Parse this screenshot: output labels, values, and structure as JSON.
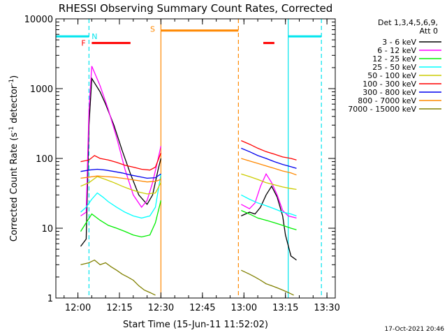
{
  "chart_data": {
    "type": "line",
    "title": "RHESSI Observing Summary Count Rates, Corrected",
    "xlabel": "Start Time (15-Jun-11 11:52:02)",
    "ylabel_main": "Corrected Count Rate (s",
    "ylabel_sup1": "-1",
    "ylabel_mid": " detector",
    "ylabel_sup2": "-1",
    "ylabel_end": ")",
    "y_scale": "log",
    "ylim": [
      1,
      10000
    ],
    "xlim": [
      "11:52:02",
      "13:33:00"
    ],
    "x_ticks": [
      "12:00",
      "12:15",
      "12:30",
      "12:45",
      "13:00",
      "13:15",
      "13:30"
    ],
    "y_ticks": [
      "1",
      "10",
      "100",
      "1000",
      "10000"
    ],
    "legend_header": [
      "Det 1,3,4,5,6,9,",
      "Att 0"
    ],
    "legend_placement": "right",
    "timestamp": "17-Oct-2021 20:46",
    "series": [
      {
        "name": "3 - 6 keV",
        "color": "#000000",
        "points": [
          [
            "12:01",
            5.5
          ],
          [
            "12:03",
            7
          ],
          [
            "12:04",
            300
          ],
          [
            "12:05",
            1400
          ],
          [
            "12:08",
            900
          ],
          [
            "12:10",
            600
          ],
          [
            "12:13",
            300
          ],
          [
            "12:16",
            130
          ],
          [
            "12:19",
            60
          ],
          [
            "12:22",
            30
          ],
          [
            "12:25",
            22
          ],
          [
            "12:27",
            30
          ],
          [
            "12:29",
            70
          ],
          [
            "12:30",
            100
          ]
        ]
      },
      {
        "name": "3 - 6 keV",
        "color": "#000000",
        "points": [
          [
            "12:59",
            15
          ],
          [
            "13:02",
            17
          ],
          [
            "13:04",
            16
          ],
          [
            "13:06",
            20
          ],
          [
            "13:08",
            30
          ],
          [
            "13:10",
            40
          ],
          [
            "13:12",
            28
          ],
          [
            "13:14",
            15
          ],
          [
            "13:15",
            8
          ],
          [
            "13:17",
            4
          ],
          [
            "13:19",
            3.5
          ]
        ]
      },
      {
        "name": "6 - 12 keV",
        "color": "#ff00ff",
        "points": [
          [
            "12:01",
            15
          ],
          [
            "12:03",
            17
          ],
          [
            "12:04",
            500
          ],
          [
            "12:05",
            2100
          ],
          [
            "12:08",
            1100
          ],
          [
            "12:11",
            500
          ],
          [
            "12:14",
            200
          ],
          [
            "12:17",
            70
          ],
          [
            "12:20",
            30
          ],
          [
            "12:23",
            20
          ],
          [
            "12:25",
            25
          ],
          [
            "12:27",
            45
          ],
          [
            "12:29",
            100
          ],
          [
            "12:30",
            150
          ]
        ]
      },
      {
        "name": "6 - 12 keV",
        "color": "#ff00ff",
        "points": [
          [
            "12:59",
            22
          ],
          [
            "13:02",
            19
          ],
          [
            "13:04",
            23
          ],
          [
            "13:06",
            40
          ],
          [
            "13:08",
            60
          ],
          [
            "13:10",
            45
          ],
          [
            "13:12",
            30
          ],
          [
            "13:14",
            18
          ],
          [
            "13:16",
            15
          ],
          [
            "13:19",
            14
          ]
        ]
      },
      {
        "name": "12 - 25 keV",
        "color": "#00ee00",
        "points": [
          [
            "12:01",
            9
          ],
          [
            "12:03",
            12
          ],
          [
            "12:05",
            16
          ],
          [
            "12:08",
            13
          ],
          [
            "12:11",
            11
          ],
          [
            "12:14",
            10
          ],
          [
            "12:17",
            9
          ],
          [
            "12:20",
            8
          ],
          [
            "12:23",
            7.5
          ],
          [
            "12:26",
            8
          ],
          [
            "12:28",
            12
          ],
          [
            "12:30",
            25
          ]
        ]
      },
      {
        "name": "12 - 25 keV",
        "color": "#00ee00",
        "points": [
          [
            "12:59",
            18
          ],
          [
            "13:02",
            16
          ],
          [
            "13:05",
            14
          ],
          [
            "13:08",
            13
          ],
          [
            "13:11",
            12
          ],
          [
            "13:14",
            11
          ],
          [
            "13:17",
            10
          ],
          [
            "13:19",
            9.5
          ]
        ]
      },
      {
        "name": "25 - 50 keV",
        "color": "#00ffff",
        "points": [
          [
            "12:01",
            17
          ],
          [
            "12:03",
            20
          ],
          [
            "12:05",
            26
          ],
          [
            "12:07",
            32
          ],
          [
            "12:09",
            28
          ],
          [
            "12:11",
            24
          ],
          [
            "12:14",
            20
          ],
          [
            "12:17",
            17
          ],
          [
            "12:20",
            15
          ],
          [
            "12:23",
            14
          ],
          [
            "12:26",
            15
          ],
          [
            "12:28",
            20
          ],
          [
            "12:30",
            60
          ]
        ]
      },
      {
        "name": "25 - 50 keV",
        "color": "#00ffff",
        "points": [
          [
            "12:59",
            30
          ],
          [
            "13:02",
            26
          ],
          [
            "13:05",
            23
          ],
          [
            "13:08",
            21
          ],
          [
            "13:11",
            19
          ],
          [
            "13:14",
            17
          ],
          [
            "13:17",
            16
          ],
          [
            "13:19",
            15
          ]
        ]
      },
      {
        "name": "50 - 100 keV",
        "color": "#cccc00",
        "points": [
          [
            "12:01",
            40
          ],
          [
            "12:04",
            45
          ],
          [
            "12:07",
            55
          ],
          [
            "12:10",
            50
          ],
          [
            "12:13",
            45
          ],
          [
            "12:16",
            40
          ],
          [
            "12:19",
            36
          ],
          [
            "12:22",
            33
          ],
          [
            "12:25",
            31
          ],
          [
            "12:28",
            32
          ],
          [
            "12:30",
            45
          ]
        ]
      },
      {
        "name": "50 - 100 keV",
        "color": "#cccc00",
        "points": [
          [
            "12:59",
            60
          ],
          [
            "13:02",
            55
          ],
          [
            "13:05",
            50
          ],
          [
            "13:08",
            45
          ],
          [
            "13:11",
            42
          ],
          [
            "13:14",
            39
          ],
          [
            "13:17",
            37
          ],
          [
            "13:19",
            36
          ]
        ]
      },
      {
        "name": "100 - 300 keV",
        "color": "#ff0000",
        "points": [
          [
            "12:01",
            90
          ],
          [
            "12:04",
            95
          ],
          [
            "12:06",
            110
          ],
          [
            "12:08",
            100
          ],
          [
            "12:11",
            95
          ],
          [
            "12:14",
            88
          ],
          [
            "12:17",
            80
          ],
          [
            "12:20",
            75
          ],
          [
            "12:23",
            70
          ],
          [
            "12:26",
            68
          ],
          [
            "12:28",
            75
          ],
          [
            "12:30",
            120
          ]
        ]
      },
      {
        "name": "100 - 300 keV",
        "color": "#ff0000",
        "points": [
          [
            "12:59",
            180
          ],
          [
            "13:02",
            160
          ],
          [
            "13:05",
            140
          ],
          [
            "13:08",
            125
          ],
          [
            "13:11",
            115
          ],
          [
            "13:14",
            105
          ],
          [
            "13:17",
            100
          ],
          [
            "13:19",
            95
          ]
        ]
      },
      {
        "name": "300 - 800 keV",
        "color": "#0000ee",
        "points": [
          [
            "12:01",
            65
          ],
          [
            "12:04",
            68
          ],
          [
            "12:07",
            70
          ],
          [
            "12:10",
            68
          ],
          [
            "12:13",
            65
          ],
          [
            "12:16",
            62
          ],
          [
            "12:19",
            58
          ],
          [
            "12:22",
            55
          ],
          [
            "12:25",
            52
          ],
          [
            "12:28",
            53
          ],
          [
            "12:30",
            60
          ]
        ]
      },
      {
        "name": "300 - 800 keV",
        "color": "#0000ee",
        "points": [
          [
            "12:59",
            140
          ],
          [
            "13:02",
            125
          ],
          [
            "13:05",
            110
          ],
          [
            "13:08",
            100
          ],
          [
            "13:11",
            90
          ],
          [
            "13:14",
            82
          ],
          [
            "13:17",
            76
          ],
          [
            "13:19",
            72
          ]
        ]
      },
      {
        "name": "800 - 7000 keV",
        "color": "#ff8800",
        "points": [
          [
            "12:01",
            52
          ],
          [
            "12:04",
            54
          ],
          [
            "12:07",
            56
          ],
          [
            "12:10",
            55
          ],
          [
            "12:13",
            54
          ],
          [
            "12:16",
            52
          ],
          [
            "12:19",
            50
          ],
          [
            "12:22",
            48
          ],
          [
            "12:25",
            46
          ],
          [
            "12:28",
            47
          ],
          [
            "12:30",
            50
          ]
        ]
      },
      {
        "name": "800 - 7000 keV",
        "color": "#ff8800",
        "points": [
          [
            "12:59",
            100
          ],
          [
            "13:02",
            92
          ],
          [
            "13:05",
            85
          ],
          [
            "13:08",
            78
          ],
          [
            "13:11",
            72
          ],
          [
            "13:14",
            66
          ],
          [
            "13:17",
            62
          ],
          [
            "13:19",
            58
          ]
        ]
      },
      {
        "name": "7000 - 15000 keV",
        "color": "#808000",
        "points": [
          [
            "12:01",
            3
          ],
          [
            "12:04",
            3.2
          ],
          [
            "12:06",
            3.5
          ],
          [
            "12:08",
            3
          ],
          [
            "12:10",
            3.2
          ],
          [
            "12:12",
            2.8
          ],
          [
            "12:14",
            2.5
          ],
          [
            "12:16",
            2.2
          ],
          [
            "12:18",
            2
          ],
          [
            "12:20",
            1.8
          ],
          [
            "12:22",
            1.5
          ],
          [
            "12:24",
            1.3
          ],
          [
            "12:26",
            1.2
          ],
          [
            "12:28",
            1.1
          ]
        ]
      },
      {
        "name": "7000 - 15000 keV",
        "color": "#808000",
        "points": [
          [
            "12:59",
            2.5
          ],
          [
            "13:02",
            2.2
          ],
          [
            "13:04",
            2
          ],
          [
            "13:06",
            1.8
          ],
          [
            "13:08",
            1.6
          ],
          [
            "13:10",
            1.5
          ],
          [
            "13:12",
            1.4
          ],
          [
            "13:14",
            1.3
          ],
          [
            "13:16",
            1.2
          ],
          [
            "13:18",
            1.1
          ]
        ]
      }
    ],
    "legend": [
      {
        "name": "3 - 6 keV",
        "color": "#000000"
      },
      {
        "name": "6 - 12 keV",
        "color": "#ff00ff"
      },
      {
        "name": "12 - 25 keV",
        "color": "#00ee00"
      },
      {
        "name": "25 - 50 keV",
        "color": "#00ffff"
      },
      {
        "name": "50 - 100 keV",
        "color": "#cccc00"
      },
      {
        "name": "100 - 300 keV",
        "color": "#ff0000"
      },
      {
        "name": "300 - 800 keV",
        "color": "#0000ee"
      },
      {
        "name": "800 - 7000 keV",
        "color": "#ff8800"
      },
      {
        "name": "7000 - 15000 keV",
        "color": "#808000"
      }
    ],
    "annotations": {
      "night_bars": {
        "color": "#00e5ee",
        "level": 5600,
        "segments": [
          [
            "11:52:02",
            "12:04"
          ],
          [
            "13:16",
            "13:28"
          ]
        ],
        "label": "N",
        "label_time": "12:06",
        "label_level": 5600
      },
      "flare_bars": {
        "color": "#ff0000",
        "level": 4500,
        "segments": [
          [
            "12:05",
            "12:19"
          ],
          [
            "13:07",
            "13:11"
          ]
        ],
        "label": "F",
        "label_time": "12:02",
        "label_level": 4500
      },
      "saa_bars": {
        "color": "#ff8800",
        "level": 6800,
        "segments": [
          [
            "12:30",
            "12:58"
          ]
        ],
        "label": "S",
        "label_time": "12:27",
        "label_level": 7200
      },
      "vlines": [
        {
          "time": "12:04",
          "color": "#00e5ee",
          "dash": true
        },
        {
          "time": "13:16",
          "color": "#00e5ee",
          "dash": false
        },
        {
          "time": "13:28",
          "color": "#00e5ee",
          "dash": true
        },
        {
          "time": "12:30",
          "color": "#ff8800",
          "dash": false
        },
        {
          "time": "12:58",
          "color": "#ff8800",
          "dash": true
        }
      ]
    }
  }
}
